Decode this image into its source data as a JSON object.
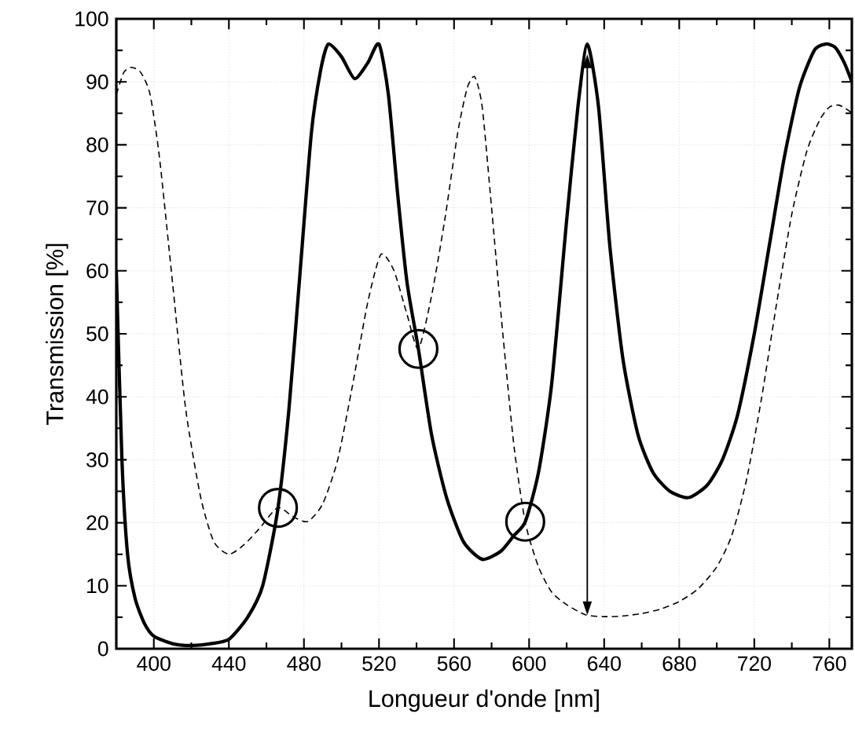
{
  "chart_data": {
    "type": "line",
    "xlabel": "Longueur d'onde [nm]",
    "ylabel": "Transmission [%]",
    "xlim": [
      380,
      772
    ],
    "ylim": [
      0,
      100
    ],
    "xticks": [
      400,
      440,
      480,
      520,
      560,
      600,
      640,
      680,
      720,
      760
    ],
    "yticks": [
      0,
      10,
      20,
      30,
      40,
      50,
      60,
      70,
      80,
      90,
      100
    ],
    "grid": true,
    "series": [
      {
        "color": "#000000",
        "line_style": "solid",
        "x": [
          380,
          383,
          386,
          390,
          395,
          400,
          410,
          420,
          430,
          440,
          450,
          458,
          466,
          472,
          478,
          484,
          489,
          493,
          500,
          507,
          514,
          520,
          525,
          530,
          535,
          541,
          548,
          556,
          565,
          575,
          585,
          592,
          598,
          605,
          612,
          620,
          626,
          631,
          637,
          643,
          650,
          658,
          666,
          675,
          685,
          695,
          703,
          711,
          720,
          728,
          736,
          744,
          752,
          758,
          763,
          768,
          772
        ],
        "values": [
          60,
          30,
          15,
          8,
          4,
          2,
          0.8,
          0.5,
          0.8,
          1.5,
          5,
          10,
          22,
          38,
          60,
          82,
          92,
          96,
          94,
          90.5,
          93,
          96,
          88,
          72,
          58,
          47.6,
          34,
          24,
          17,
          14.2,
          15.5,
          18,
          20.2,
          28,
          42,
          68,
          86,
          96,
          86,
          64,
          46,
          34,
          28,
          25,
          24,
          26,
          30,
          37,
          50,
          64,
          78,
          89,
          95,
          96,
          95.5,
          93,
          90
        ]
      },
      {
        "color": "#000000",
        "line_style": "dashed",
        "x": [
          380,
          384,
          388,
          393,
          398,
          403,
          410,
          417,
          425,
          432,
          440,
          448,
          456,
          466,
          474,
          482,
          490,
          498,
          506,
          514,
          521,
          528,
          535,
          541,
          548,
          555,
          562,
          567,
          571,
          575,
          580,
          586,
          592,
          598,
          605,
          612,
          620,
          630,
          640,
          650,
          660,
          670,
          680,
          690,
          700,
          708,
          716,
          724,
          732,
          740,
          748,
          755,
          760,
          765,
          770,
          772
        ],
        "values": [
          88,
          91.5,
          92.3,
          91.5,
          88,
          78,
          58,
          38,
          24,
          17,
          15,
          16.5,
          19,
          22.4,
          21,
          20.2,
          23,
          30,
          42,
          55,
          62.6,
          60,
          53,
          47.6,
          56,
          68,
          82,
          89,
          90.8,
          86,
          70,
          50,
          32,
          20,
          13,
          9,
          7,
          5.4,
          5.1,
          5.2,
          5.6,
          6.3,
          7.5,
          9.5,
          13,
          18,
          27,
          40,
          55,
          69,
          79,
          84,
          86,
          86.3,
          85.5,
          85
        ]
      }
    ]
  }
}
